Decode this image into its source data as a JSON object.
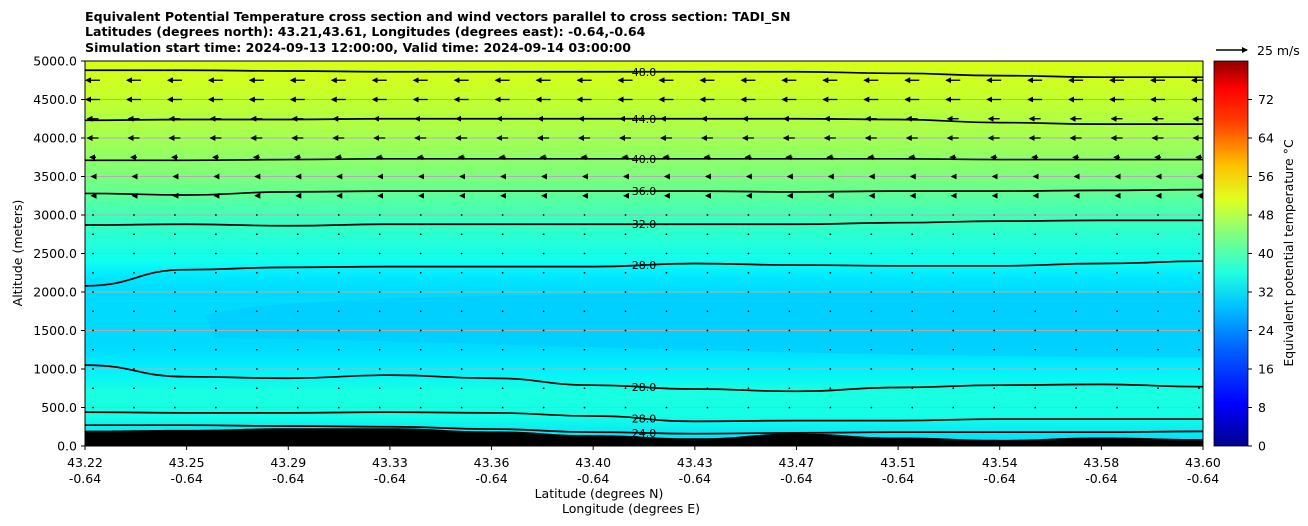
{
  "title": {
    "line1": "Equivalent Potential Temperature cross section and wind vectors parallel to cross section: TADI_SN",
    "line2": "Latitudes (degrees north): 43.21,43.61, Longitudes (degrees east): -0.64,-0.64",
    "line3": "Simulation start time: 2024-09-13 12:00:00, Valid time: 2024-09-14 03:00:00"
  },
  "chart_data": {
    "type": "heatmap",
    "xlabel": "Latitude (degrees N)",
    "xlabel2": "Longitude (degrees E)",
    "ylabel": "Altitude (meters)",
    "colorbar_label": "Equivalent potential temperature °C",
    "xlim": [
      43.22,
      43.6
    ],
    "ylim": [
      0,
      5000
    ],
    "x_ticks": [
      {
        "lat": "43.22",
        "lon": "-0.64"
      },
      {
        "lat": "43.25",
        "lon": "-0.64"
      },
      {
        "lat": "43.29",
        "lon": "-0.64"
      },
      {
        "lat": "43.33",
        "lon": "-0.64"
      },
      {
        "lat": "43.36",
        "lon": "-0.64"
      },
      {
        "lat": "43.40",
        "lon": "-0.64"
      },
      {
        "lat": "43.43",
        "lon": "-0.64"
      },
      {
        "lat": "43.47",
        "lon": "-0.64"
      },
      {
        "lat": "43.51",
        "lon": "-0.64"
      },
      {
        "lat": "43.54",
        "lon": "-0.64"
      },
      {
        "lat": "43.58",
        "lon": "-0.64"
      },
      {
        "lat": "43.60",
        "lon": "-0.64"
      }
    ],
    "y_ticks": [
      "0.0",
      "500.0",
      "1000.0",
      "1500.0",
      "2000.0",
      "2500.0",
      "3000.0",
      "3500.0",
      "4000.0",
      "4500.0",
      "5000.0"
    ],
    "colorbar_ticks": [
      "0",
      "8",
      "16",
      "24",
      "32",
      "40",
      "48",
      "56",
      "64",
      "72"
    ],
    "colorbar_range": [
      0,
      80
    ],
    "grid": "horizontal",
    "wind_key": {
      "label": "25 m/s",
      "speed": 25
    },
    "contours": [
      {
        "label": "48.0",
        "value": 48,
        "alt": [
          4880,
          4880,
          4870,
          4860,
          4860,
          4860,
          4860,
          4860,
          4840,
          4810,
          4790,
          4790
        ]
      },
      {
        "label": "44.0",
        "value": 44,
        "alt": [
          4230,
          4240,
          4240,
          4250,
          4250,
          4250,
          4250,
          4250,
          4240,
          4200,
          4180,
          4180
        ]
      },
      {
        "label": "40.0",
        "value": 40,
        "alt": [
          3710,
          3710,
          3720,
          3730,
          3730,
          3730,
          3730,
          3730,
          3730,
          3720,
          3720,
          3720
        ]
      },
      {
        "label": "36.0",
        "value": 36,
        "alt": [
          3280,
          3260,
          3300,
          3310,
          3310,
          3310,
          3310,
          3300,
          3310,
          3310,
          3320,
          3330
        ]
      },
      {
        "label": "32.0",
        "value": 32,
        "alt": [
          2870,
          2880,
          2860,
          2880,
          2880,
          2880,
          2880,
          2880,
          2900,
          2920,
          2930,
          2930
        ]
      },
      {
        "label": "28.0",
        "value": 28,
        "alt": [
          2080,
          2290,
          2320,
          2330,
          2330,
          2330,
          2370,
          2350,
          2340,
          2340,
          2370,
          2400
        ]
      },
      {
        "label": "28.0",
        "value": 28,
        "alt": [
          1050,
          900,
          880,
          920,
          880,
          790,
          740,
          710,
          760,
          790,
          800,
          770
        ]
      },
      {
        "label": "28.0",
        "value": 28,
        "alt": [
          440,
          430,
          430,
          440,
          430,
          390,
          320,
          330,
          330,
          350,
          350,
          350
        ]
      },
      {
        "label": "24.0",
        "value": 24,
        "alt": [
          270,
          270,
          260,
          250,
          220,
          180,
          160,
          170,
          180,
          180,
          180,
          190
        ]
      }
    ],
    "terrain_alt": [
      200,
      210,
      230,
      230,
      190,
      140,
      100,
      160,
      110,
      80,
      110,
      90
    ],
    "fill_bands": [
      {
        "name": "upper",
        "value": 48,
        "color": "#d4ff1a"
      },
      {
        "name": "middle",
        "value": 32,
        "color": "#1affe0"
      },
      {
        "name": "core",
        "value": 26,
        "color": "#00c8ff"
      }
    ]
  }
}
